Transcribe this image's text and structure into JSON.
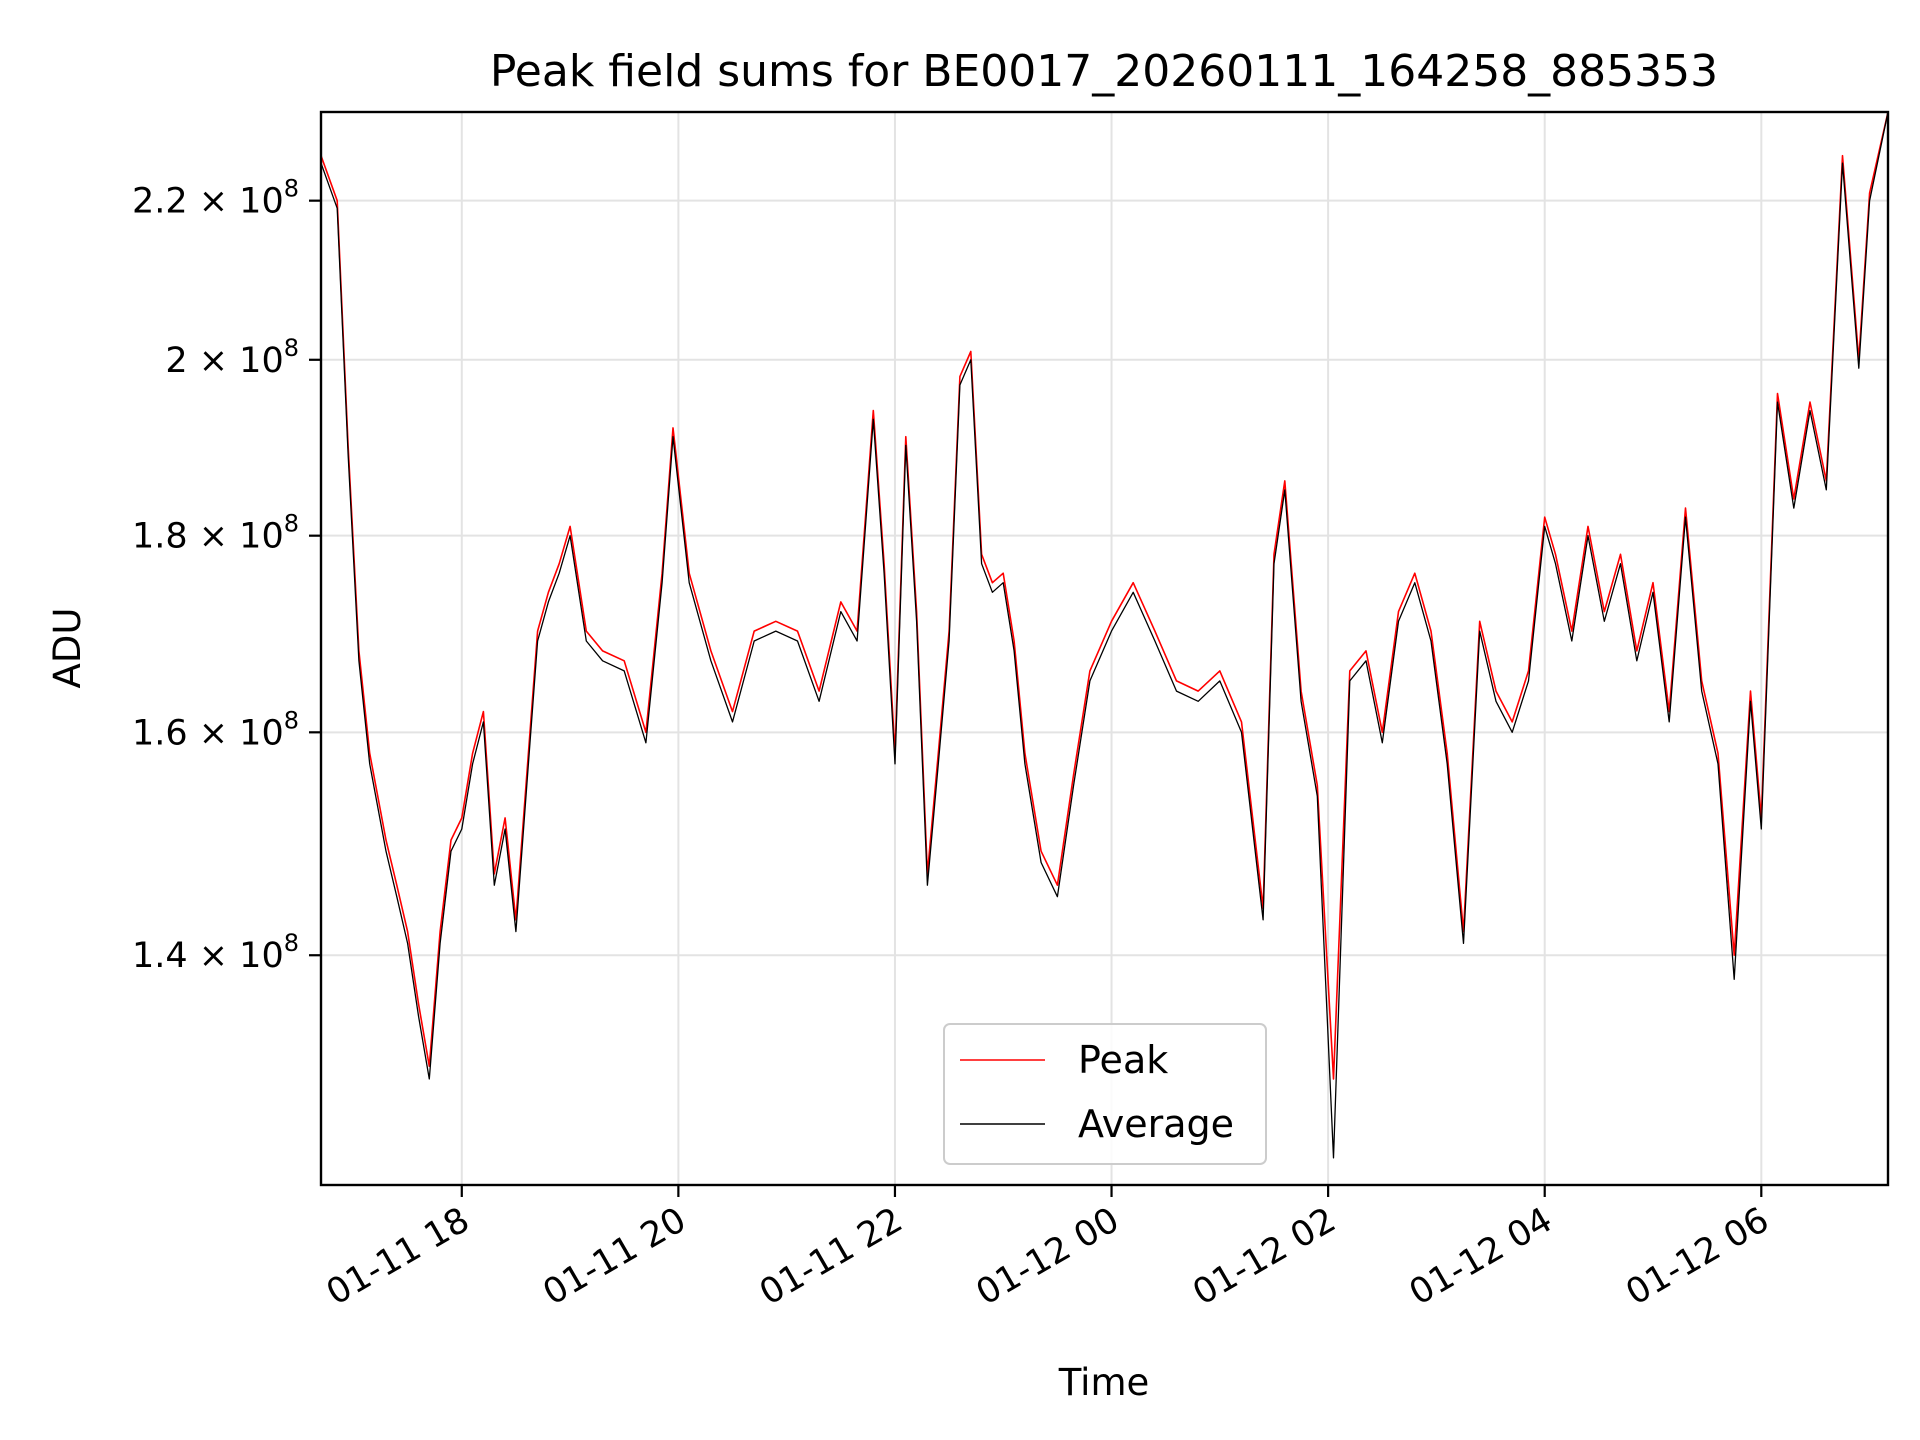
{
  "chart_data": {
    "type": "line",
    "title": "Peak field sums for BE0017_20260111_164258_885353",
    "xlabel": "Time",
    "ylabel": "ADU",
    "y_scale": "log",
    "xlim_hours": [
      16.7,
      31.17
    ],
    "ylim": [
      122000000,
      232000000
    ],
    "x_ticks": [
      {
        "label": "01-11 18",
        "hour": 18
      },
      {
        "label": "01-11 20",
        "hour": 20
      },
      {
        "label": "01-11 22",
        "hour": 22
      },
      {
        "label": "01-12 00",
        "hour": 24
      },
      {
        "label": "01-12 02",
        "hour": 26
      },
      {
        "label": "01-12 04",
        "hour": 28
      },
      {
        "label": "01-12 06",
        "hour": 30
      }
    ],
    "y_ticks": [
      {
        "value": 140000000,
        "mantissa": "1.4",
        "exp": "8"
      },
      {
        "value": 160000000,
        "mantissa": "1.6",
        "exp": "8"
      },
      {
        "value": 180000000,
        "mantissa": "1.8",
        "exp": "8"
      },
      {
        "value": 200000000,
        "mantissa": "2",
        "exp": "8"
      },
      {
        "value": 220000000,
        "mantissa": "2.2",
        "exp": "8"
      }
    ],
    "grid": true,
    "legend_position": "bottom-center",
    "series": [
      {
        "name": "Peak",
        "color": "#ff0000",
        "x": [
          16.7,
          16.85,
          16.95,
          17.05,
          17.15,
          17.3,
          17.4,
          17.5,
          17.6,
          17.7,
          17.8,
          17.9,
          18.0,
          18.1,
          18.2,
          18.3,
          18.4,
          18.5,
          18.6,
          18.7,
          18.8,
          18.9,
          19.0,
          19.15,
          19.3,
          19.5,
          19.7,
          19.85,
          19.95,
          20.1,
          20.3,
          20.5,
          20.7,
          20.9,
          21.1,
          21.3,
          21.5,
          21.65,
          21.8,
          21.9,
          22.0,
          22.1,
          22.2,
          22.3,
          22.4,
          22.5,
          22.6,
          22.7,
          22.8,
          22.9,
          23.0,
          23.1,
          23.2,
          23.35,
          23.5,
          23.65,
          23.8,
          24.0,
          24.2,
          24.4,
          24.6,
          24.8,
          25.0,
          25.2,
          25.4,
          25.5,
          25.6,
          25.75,
          25.9,
          26.05,
          26.2,
          26.35,
          26.5,
          26.65,
          26.8,
          26.95,
          27.1,
          27.25,
          27.4,
          27.55,
          27.7,
          27.85,
          28.0,
          28.1,
          28.25,
          28.4,
          28.55,
          28.7,
          28.85,
          29.0,
          29.15,
          29.3,
          29.45,
          29.6,
          29.75,
          29.9,
          30.0,
          30.15,
          30.3,
          30.45,
          30.6,
          30.75,
          30.9,
          31.0,
          31.17
        ],
        "values": [
          226000000,
          220000000,
          190000000,
          168000000,
          158000000,
          150000000,
          146000000,
          142000000,
          136000000,
          131000000,
          142000000,
          150000000,
          152000000,
          158000000,
          162000000,
          147000000,
          152000000,
          143000000,
          156000000,
          170000000,
          174000000,
          177000000,
          181000000,
          170000000,
          168000000,
          167000000,
          160000000,
          176000000,
          192000000,
          176000000,
          168000000,
          162000000,
          170000000,
          171000000,
          170000000,
          164000000,
          173000000,
          170000000,
          194000000,
          177000000,
          158000000,
          191000000,
          172000000,
          147000000,
          158000000,
          170000000,
          198000000,
          201000000,
          178000000,
          175000000,
          176000000,
          169000000,
          158000000,
          149000000,
          146000000,
          156000000,
          166000000,
          171000000,
          175000000,
          170000000,
          165000000,
          164000000,
          166000000,
          161000000,
          144000000,
          178000000,
          186000000,
          164000000,
          155000000,
          130000000,
          166000000,
          168000000,
          160000000,
          172000000,
          176000000,
          170000000,
          158000000,
          142000000,
          171000000,
          164000000,
          161000000,
          166000000,
          182000000,
          178000000,
          170000000,
          181000000,
          172000000,
          178000000,
          168000000,
          175000000,
          162000000,
          183000000,
          165000000,
          158000000,
          140000000,
          164000000,
          152000000,
          196000000,
          184000000,
          195000000,
          186000000,
          226000000,
          200000000,
          221000000,
          232000000
        ]
      },
      {
        "name": "Average",
        "color": "#000000",
        "x": [
          16.7,
          16.85,
          16.95,
          17.05,
          17.15,
          17.3,
          17.4,
          17.5,
          17.6,
          17.7,
          17.8,
          17.9,
          18.0,
          18.1,
          18.2,
          18.3,
          18.4,
          18.5,
          18.6,
          18.7,
          18.8,
          18.9,
          19.0,
          19.15,
          19.3,
          19.5,
          19.7,
          19.85,
          19.95,
          20.1,
          20.3,
          20.5,
          20.7,
          20.9,
          21.1,
          21.3,
          21.5,
          21.65,
          21.8,
          21.9,
          22.0,
          22.1,
          22.2,
          22.3,
          22.4,
          22.5,
          22.6,
          22.7,
          22.8,
          22.9,
          23.0,
          23.1,
          23.2,
          23.35,
          23.5,
          23.65,
          23.8,
          24.0,
          24.2,
          24.4,
          24.6,
          24.8,
          25.0,
          25.2,
          25.4,
          25.5,
          25.6,
          25.75,
          25.9,
          26.05,
          26.2,
          26.35,
          26.5,
          26.65,
          26.8,
          26.95,
          27.1,
          27.25,
          27.4,
          27.55,
          27.7,
          27.85,
          28.0,
          28.1,
          28.25,
          28.4,
          28.55,
          28.7,
          28.85,
          29.0,
          29.15,
          29.3,
          29.45,
          29.6,
          29.75,
          29.9,
          30.0,
          30.15,
          30.3,
          30.45,
          30.6,
          30.75,
          30.9,
          31.0,
          31.17
        ],
        "values": [
          225000000,
          219000000,
          189000000,
          167000000,
          157000000,
          149000000,
          145000000,
          141000000,
          135000000,
          130000000,
          141000000,
          149000000,
          151000000,
          157000000,
          161000000,
          146000000,
          151000000,
          142000000,
          155000000,
          169000000,
          173000000,
          176000000,
          180000000,
          169000000,
          167000000,
          166000000,
          159000000,
          175000000,
          191000000,
          175000000,
          167000000,
          161000000,
          169000000,
          170000000,
          169000000,
          163000000,
          172000000,
          169000000,
          193000000,
          176000000,
          157000000,
          190000000,
          171000000,
          146000000,
          157000000,
          169000000,
          197000000,
          200000000,
          177000000,
          174000000,
          175000000,
          168000000,
          157000000,
          148000000,
          145000000,
          155000000,
          165000000,
          170000000,
          174000000,
          169000000,
          164000000,
          163000000,
          165000000,
          160000000,
          143000000,
          177000000,
          185000000,
          163000000,
          154000000,
          124000000,
          165000000,
          167000000,
          159000000,
          171000000,
          175000000,
          169000000,
          157000000,
          141000000,
          170000000,
          163000000,
          160000000,
          165000000,
          181000000,
          177000000,
          169000000,
          180000000,
          171000000,
          177000000,
          167000000,
          174000000,
          161000000,
          182000000,
          164000000,
          157000000,
          138000000,
          163000000,
          151000000,
          195000000,
          183000000,
          194000000,
          185000000,
          225000000,
          199000000,
          220000000,
          232000000
        ]
      }
    ]
  }
}
